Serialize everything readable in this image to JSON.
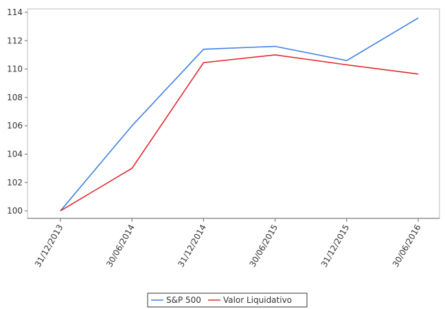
{
  "chart_data": {
    "type": "line",
    "categories": [
      "31/12/2013",
      "30/06/2014",
      "31/12/2014",
      "30/06/2015",
      "31/12/2015",
      "30/06/2016"
    ],
    "series": [
      {
        "name": "S&P 500",
        "color": "#3f7fe3",
        "values": [
          100,
          106.0,
          111.4,
          111.6,
          110.6,
          113.6
        ]
      },
      {
        "name": "Valor Liquidativo",
        "color": "#e3282d",
        "values": [
          100,
          103.0,
          110.45,
          111.0,
          110.3,
          109.65
        ]
      }
    ],
    "ylim": [
      99.47,
      114.24
    ],
    "yticks": [
      100,
      102,
      104,
      106,
      108,
      110,
      112,
      114
    ]
  }
}
